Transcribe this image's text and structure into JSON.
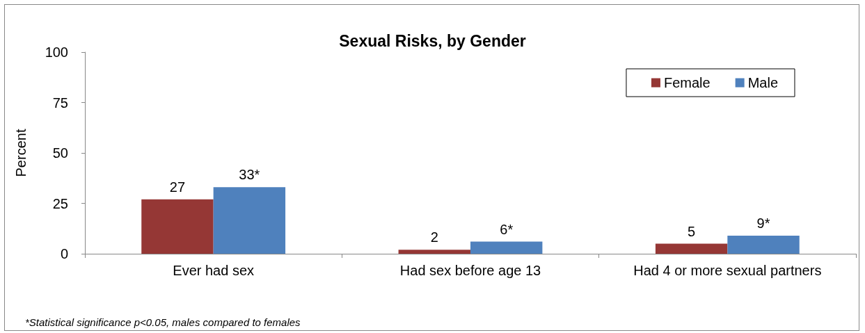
{
  "chart_data": {
    "type": "bar",
    "title": "Sexual Risks, by Gender",
    "ylabel": "Percent",
    "categories": [
      "Ever had sex",
      "Had sex before age 13",
      "Had 4 or more sexual partners"
    ],
    "series": [
      {
        "name": "Female",
        "color": "#953735",
        "values": [
          27,
          2,
          5
        ],
        "value_labels": [
          "27",
          "2",
          "5"
        ]
      },
      {
        "name": "Male",
        "color": "#4f81bd",
        "values": [
          33,
          6,
          9
        ],
        "value_labels": [
          "33*",
          "6*",
          "9*"
        ]
      }
    ],
    "ylim": [
      0,
      100
    ],
    "yticks": [
      0,
      25,
      50,
      75,
      100
    ],
    "grid": false,
    "legend": "top right",
    "annotations": [
      "*Statistical significance p<0.05, males compared to females"
    ]
  }
}
